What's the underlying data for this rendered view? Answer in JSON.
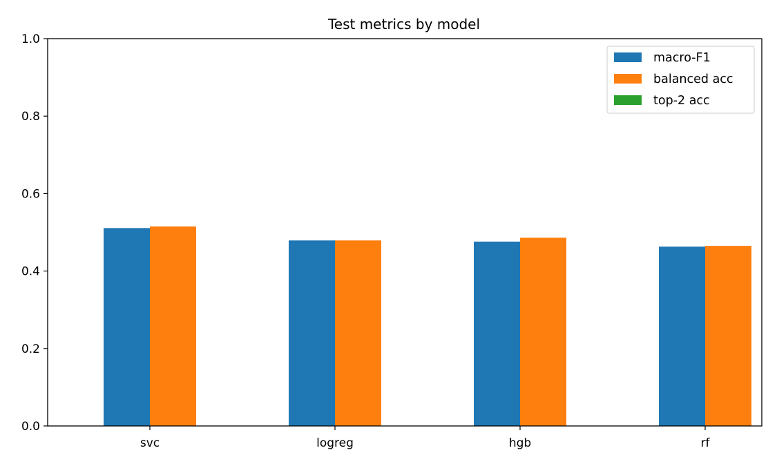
{
  "chart_data": {
    "type": "bar",
    "title": "Test metrics by model",
    "xlabel": "",
    "ylabel": "",
    "categories": [
      "svc",
      "logreg",
      "hgb",
      "rf"
    ],
    "series": [
      {
        "name": "macro-F1",
        "color": "#1f77b4",
        "values": [
          0.511,
          0.479,
          0.476,
          0.463
        ]
      },
      {
        "name": "balanced acc",
        "color": "#ff7f0e",
        "values": [
          0.515,
          0.479,
          0.486,
          0.465
        ]
      },
      {
        "name": "top-2 acc",
        "color": "#2ca02c",
        "values": [
          null,
          null,
          null,
          null
        ]
      }
    ],
    "ylim": [
      0,
      1.0
    ],
    "yticks": [
      "0.0",
      "0.2",
      "0.4",
      "0.6",
      "0.8",
      "1.0"
    ],
    "grid": false,
    "legend_position": "top-right"
  }
}
